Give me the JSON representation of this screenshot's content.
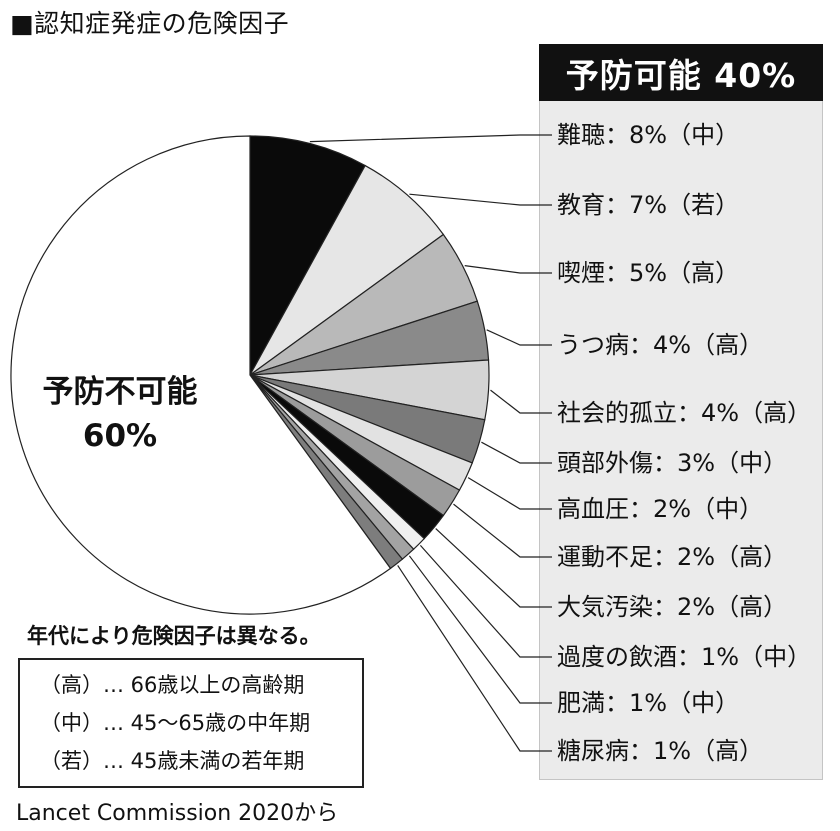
{
  "title": "■認知症発症の危険因子",
  "panel": {
    "header": "予防可能 40%"
  },
  "center_label": {
    "line1": "予防不可能",
    "line2": "60%"
  },
  "chart_data": {
    "type": "pie",
    "title": "■認知症発症の危険因子",
    "slices": [
      {
        "label": "難聴",
        "value": 8,
        "age": "中",
        "text": "難聴：8%（中）",
        "color": "#0a0a0a"
      },
      {
        "label": "教育",
        "value": 7,
        "age": "若",
        "text": "教育：7%（若）",
        "color": "#e6e6e6"
      },
      {
        "label": "喫煙",
        "value": 5,
        "age": "高",
        "text": "喫煙：5%（高）",
        "color": "#b9b9b9"
      },
      {
        "label": "うつ病",
        "value": 4,
        "age": "高",
        "text": "うつ病：4%（高）",
        "color": "#8a8a8a"
      },
      {
        "label": "社会的孤立",
        "value": 4,
        "age": "高",
        "text": "社会的孤立：4%（高）",
        "color": "#d4d4d4"
      },
      {
        "label": "頭部外傷",
        "value": 3,
        "age": "中",
        "text": "頭部外傷：3%（中）",
        "color": "#7a7a7a"
      },
      {
        "label": "高血圧",
        "value": 2,
        "age": "中",
        "text": "高血圧：2%（中）",
        "color": "#e2e2e2"
      },
      {
        "label": "運動不足",
        "value": 2,
        "age": "高",
        "text": "運動不足：2%（高）",
        "color": "#9c9c9c"
      },
      {
        "label": "大気汚染",
        "value": 2,
        "age": "高",
        "text": "大気汚染：2%（高）",
        "color": "#0a0a0a"
      },
      {
        "label": "過度の飲酒",
        "value": 1,
        "age": "中",
        "text": "過度の飲酒：1%（中）",
        "color": "#f0f0f0"
      },
      {
        "label": "肥満",
        "value": 1,
        "age": "中",
        "text": "肥満：1%（中）",
        "color": "#a3a3a3"
      },
      {
        "label": "糖尿病",
        "value": 1,
        "age": "高",
        "text": "糖尿病：1%（高）",
        "color": "#7d7d7d"
      },
      {
        "label": "予防不可能",
        "value": 60,
        "age": "",
        "text": "予防不可能 60%",
        "color": "#ffffff"
      }
    ]
  },
  "note_title": "年代により危険因子は異なる。",
  "legend": [
    "（高）… 66歳以上の高齢期",
    "（中）… 45～65歳の中年期",
    "（若）… 45歳未満の若年期"
  ],
  "source": "Lancet Commission 2020から"
}
